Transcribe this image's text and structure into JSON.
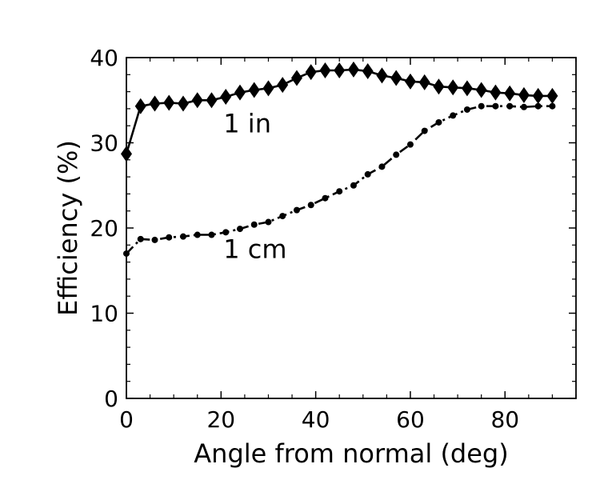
{
  "chart_data": {
    "type": "line",
    "title": "",
    "xlabel": "Angle from normal (deg)",
    "ylabel": "Efficiency (%)",
    "xlim": [
      0,
      95
    ],
    "ylim": [
      0,
      40
    ],
    "xticks": [
      0,
      20,
      40,
      60,
      80
    ],
    "yticks": [
      0,
      10,
      20,
      30,
      40
    ],
    "x_minor_step": 5,
    "y_minor_step": 2,
    "grid": false,
    "annotations": [
      {
        "text": "1 in",
        "x": 20.5,
        "y": 31.2,
        "series": "1 in"
      },
      {
        "text": "1 cm",
        "x": 20.5,
        "y": 16.5,
        "series": "1 cm"
      }
    ],
    "series": [
      {
        "name": "1 in",
        "marker": "diamond",
        "line_style": "solid",
        "color": "#000000",
        "x": [
          0,
          3,
          6,
          9,
          12,
          15,
          18,
          21,
          24,
          27,
          30,
          33,
          36,
          39,
          42,
          45,
          48,
          51,
          54,
          57,
          60,
          63,
          66,
          69,
          72,
          75,
          78,
          81,
          84,
          87,
          90
        ],
        "y": [
          28.7,
          34.3,
          34.6,
          34.7,
          34.6,
          35.0,
          35.0,
          35.4,
          35.9,
          36.2,
          36.4,
          36.8,
          37.6,
          38.3,
          38.5,
          38.5,
          38.6,
          38.4,
          37.9,
          37.6,
          37.2,
          37.1,
          36.6,
          36.5,
          36.4,
          36.2,
          35.9,
          35.8,
          35.6,
          35.5,
          35.5
        ]
      },
      {
        "name": "1 cm",
        "marker": "circle",
        "line_style": "dashdot",
        "color": "#000000",
        "x": [
          0,
          3,
          6,
          9,
          12,
          15,
          18,
          21,
          24,
          27,
          30,
          33,
          36,
          39,
          42,
          45,
          48,
          51,
          54,
          57,
          60,
          63,
          66,
          69,
          72,
          75,
          78,
          81,
          84,
          87,
          90
        ],
        "y": [
          17.0,
          18.7,
          18.6,
          18.9,
          19.0,
          19.2,
          19.2,
          19.5,
          19.9,
          20.4,
          20.7,
          21.4,
          22.1,
          22.7,
          23.5,
          24.3,
          25.0,
          26.3,
          27.2,
          28.6,
          29.8,
          31.4,
          32.4,
          33.2,
          33.9,
          34.3,
          34.3,
          34.3,
          34.2,
          34.3,
          34.3
        ]
      }
    ]
  }
}
